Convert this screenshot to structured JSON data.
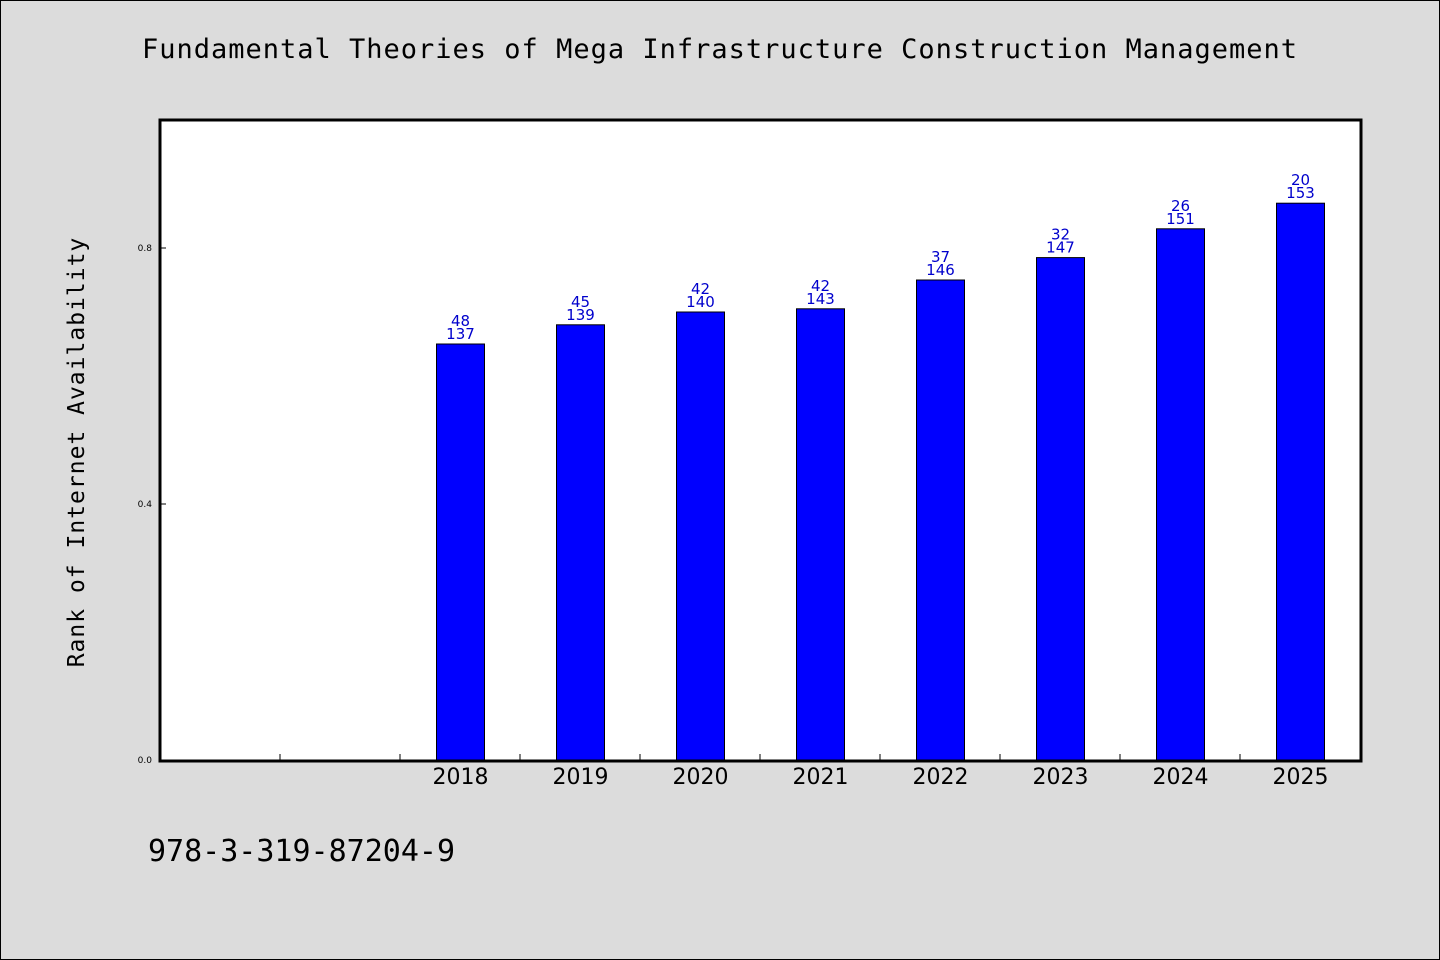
{
  "title": "Fundamental Theories of Mega Infrastructure Construction Management",
  "footer": {
    "isbn": "978-3-319-87204-9"
  },
  "chart_data": {
    "type": "bar",
    "title": "Fundamental Theories of Mega Infrastructure Construction Management",
    "xlabel": "",
    "ylabel": "Rank of Internet Availability",
    "categories": [
      "2018",
      "2019",
      "2020",
      "2021",
      "2022",
      "2023",
      "2024",
      "2025"
    ],
    "values": [
      0.65,
      0.68,
      0.7,
      0.705,
      0.75,
      0.785,
      0.83,
      0.87
    ],
    "data_labels": [
      [
        "48",
        "137"
      ],
      [
        "45",
        "139"
      ],
      [
        "42",
        "140"
      ],
      [
        "42",
        "143"
      ],
      [
        "37",
        "146"
      ],
      [
        "32",
        "147"
      ],
      [
        "26",
        "151"
      ],
      [
        "20",
        "153"
      ]
    ],
    "yticks": [
      "0.0",
      "0.4",
      "0.8"
    ],
    "ylim": [
      0,
      1.0
    ],
    "empty_leading_slots": 2,
    "grid": false,
    "bar_color": "#0000ff",
    "label_color": "#0000cc",
    "background": "#dcdcdc",
    "plot_background": "#ffffff"
  }
}
